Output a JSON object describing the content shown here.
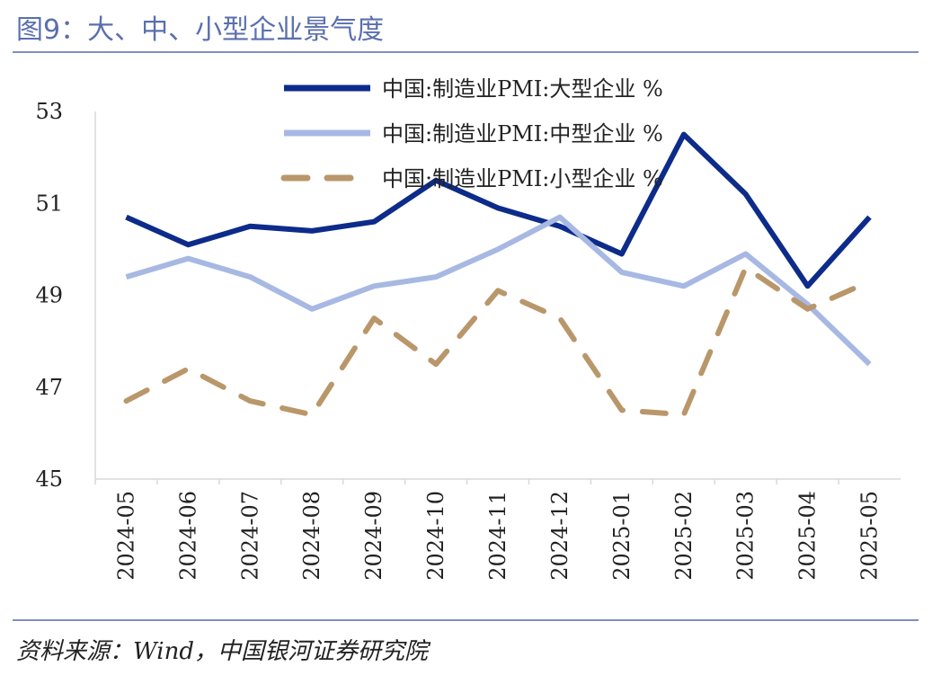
{
  "figure": {
    "title": "图9：大、中、小型企业景气度",
    "source": "资料来源：Wind，中国银河证券研究院"
  },
  "chart_data": {
    "type": "line",
    "title": "",
    "xlabel": "",
    "ylabel": "",
    "ylim": [
      45,
      53
    ],
    "yticks": [
      45,
      47,
      49,
      51,
      53
    ],
    "grid": false,
    "legend_position": "top-right",
    "categories": [
      "2024-05",
      "2024-06",
      "2024-07",
      "2024-08",
      "2024-09",
      "2024-10",
      "2024-11",
      "2024-12",
      "2025-01",
      "2025-02",
      "2025-03",
      "2025-04",
      "2025-05"
    ],
    "series": [
      {
        "name": "中国:制造业PMI:大型企业 %",
        "color": "#0d2b8a",
        "dash": "solid",
        "values": [
          50.7,
          50.1,
          50.5,
          50.4,
          50.6,
          51.5,
          50.9,
          50.5,
          49.9,
          52.5,
          51.2,
          49.2,
          50.7
        ]
      },
      {
        "name": "中国:制造业PMI:中型企业 %",
        "color": "#a7b8e3",
        "dash": "solid",
        "values": [
          49.4,
          49.8,
          49.4,
          48.7,
          49.2,
          49.4,
          50.0,
          50.7,
          49.5,
          49.2,
          49.9,
          48.8,
          47.5
        ]
      },
      {
        "name": "中国:制造业PMI:小型企业 %",
        "color": "#b9976a",
        "dash": "dashed",
        "values": [
          46.7,
          47.4,
          46.7,
          46.4,
          48.5,
          47.5,
          49.1,
          48.5,
          46.5,
          46.4,
          49.6,
          48.7,
          49.3
        ]
      }
    ]
  }
}
